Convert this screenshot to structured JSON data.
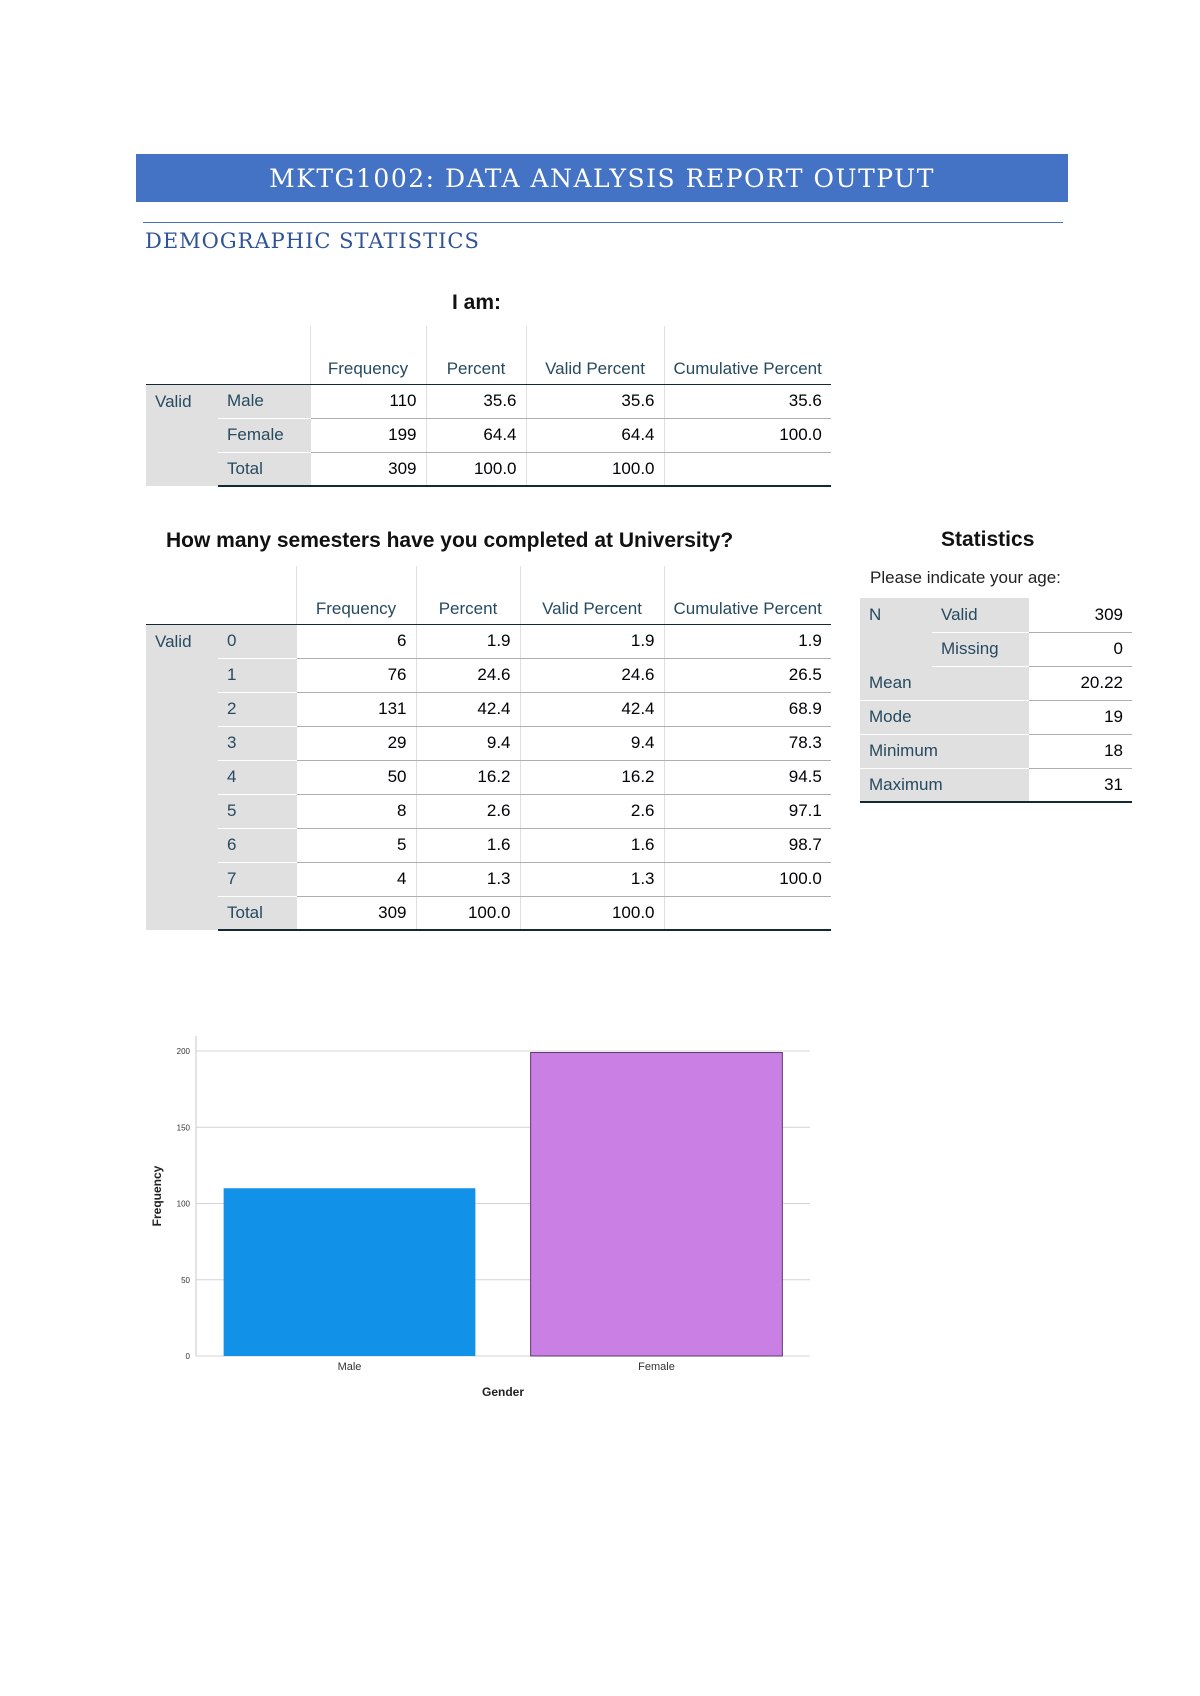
{
  "header": {
    "banner": "MKTG1002: DATA ANALYSIS REPORT OUTPUT",
    "section": "DEMOGRAPHIC STATISTICS"
  },
  "gender_table": {
    "title": "I am:",
    "headers": [
      "Frequency",
      "Percent",
      "Valid Percent",
      "Cumulative Percent"
    ],
    "group": "Valid",
    "rows": [
      {
        "label": "Male",
        "frequency": "110",
        "percent": "35.6",
        "valid": "35.6",
        "cumulative": "35.6"
      },
      {
        "label": "Female",
        "frequency": "199",
        "percent": "64.4",
        "valid": "64.4",
        "cumulative": "100.0"
      },
      {
        "label": "Total",
        "frequency": "309",
        "percent": "100.0",
        "valid": "100.0",
        "cumulative": ""
      }
    ]
  },
  "semesters_table": {
    "title": "How many semesters have you completed at University?",
    "headers": [
      "Frequency",
      "Percent",
      "Valid Percent",
      "Cumulative Percent"
    ],
    "group": "Valid",
    "rows": [
      {
        "label": "0",
        "frequency": "6",
        "percent": "1.9",
        "valid": "1.9",
        "cumulative": "1.9"
      },
      {
        "label": "1",
        "frequency": "76",
        "percent": "24.6",
        "valid": "24.6",
        "cumulative": "26.5"
      },
      {
        "label": "2",
        "frequency": "131",
        "percent": "42.4",
        "valid": "42.4",
        "cumulative": "68.9"
      },
      {
        "label": "3",
        "frequency": "29",
        "percent": "9.4",
        "valid": "9.4",
        "cumulative": "78.3"
      },
      {
        "label": "4",
        "frequency": "50",
        "percent": "16.2",
        "valid": "16.2",
        "cumulative": "94.5"
      },
      {
        "label": "5",
        "frequency": "8",
        "percent": "2.6",
        "valid": "2.6",
        "cumulative": "97.1"
      },
      {
        "label": "6",
        "frequency": "5",
        "percent": "1.6",
        "valid": "1.6",
        "cumulative": "98.7"
      },
      {
        "label": "7",
        "frequency": "4",
        "percent": "1.3",
        "valid": "1.3",
        "cumulative": "100.0"
      },
      {
        "label": "Total",
        "frequency": "309",
        "percent": "100.0",
        "valid": "100.0",
        "cumulative": ""
      }
    ]
  },
  "stats_table": {
    "title": "Statistics",
    "caption": "Please indicate your age:",
    "n_label": "N",
    "valid_label": "Valid",
    "valid_value": "309",
    "missing_label": "Missing",
    "missing_value": "0",
    "rows": [
      {
        "label": "Mean",
        "value": "20.22"
      },
      {
        "label": "Mode",
        "value": "19"
      },
      {
        "label": "Minimum",
        "value": "18"
      },
      {
        "label": "Maximum",
        "value": "31"
      }
    ]
  },
  "chart_data": {
    "type": "bar",
    "categories": [
      "Male",
      "Female"
    ],
    "values": [
      110,
      199
    ],
    "colors": [
      "#1192e8",
      "#c97fe3"
    ],
    "xlabel": "Gender",
    "ylabel": "Frequency",
    "ylim": [
      0,
      200
    ],
    "yticks": [
      0,
      50,
      100,
      150,
      200
    ],
    "grid": true
  }
}
